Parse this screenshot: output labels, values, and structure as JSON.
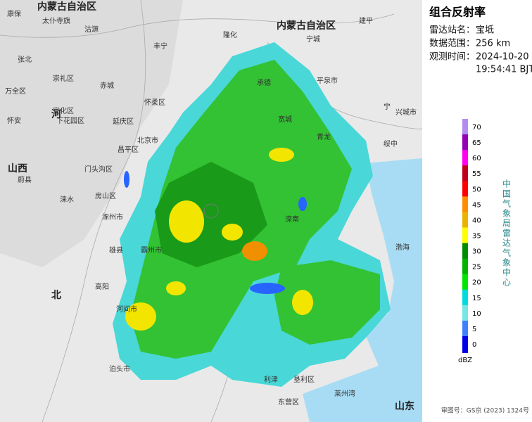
{
  "panel": {
    "title": "组合反射率",
    "station_label": "雷达站名：",
    "station": "宝坻",
    "range_label": "数据范围：",
    "range": "256 km",
    "time_label": "观测时间：",
    "date": "2024-10-20",
    "time": "19:54:41 BJT"
  },
  "legend": {
    "levels": [
      70,
      65,
      60,
      55,
      50,
      45,
      40,
      35,
      30,
      25,
      20,
      15,
      10,
      5,
      0
    ],
    "colors": [
      "#b48cf0",
      "#9600b4",
      "#ff00f0",
      "#c00018",
      "#ff0000",
      "#ff8c00",
      "#e8b400",
      "#ffff00",
      "#008c00",
      "#00b400",
      "#00e600",
      "#00dcdc",
      "#78e6e6",
      "#4080ff",
      "#0000e8"
    ],
    "unit": "dBZ",
    "source": "中国气象局雷达气象中心"
  },
  "map": {
    "places": [
      "康保",
      "太仆寺旗",
      "内蒙古自治区",
      "沽源",
      "张北",
      "崇礼区",
      "赤城",
      "丰宁",
      "隆化",
      "内蒙古自治区",
      "宁城",
      "建平",
      "承德",
      "平泉市",
      "万全区",
      "怀安",
      "宣化区",
      "下花园区",
      "延庆区",
      "怀柔区",
      "北京市",
      "昌平区",
      "门头沟区",
      "房山区",
      "涿州市",
      "山西",
      "蔚县",
      "涞水",
      "霸州市",
      "雄县",
      "高阳",
      "河间市",
      "泊头市",
      "宽城",
      "青龙",
      "绥中",
      "兴城市",
      "宁",
      "滦南",
      "渤海",
      "利津",
      "垦利区",
      "东营区",
      "莱州湾",
      "山东",
      "河",
      "北"
    ],
    "approval": "审图号：GS京 (2023) 1324号"
  }
}
